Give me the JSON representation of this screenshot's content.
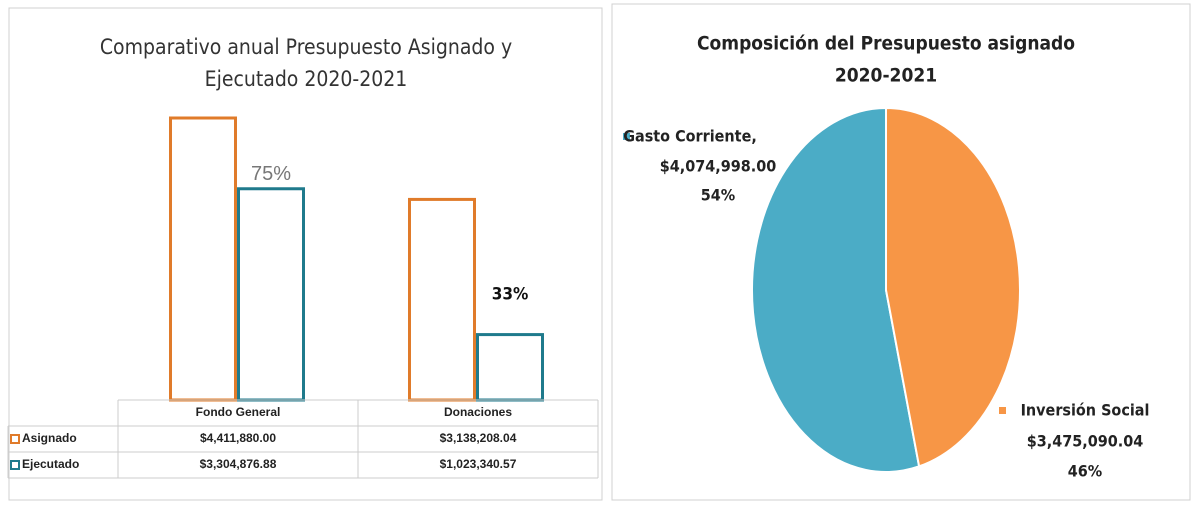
{
  "chart_data": [
    {
      "type": "bar",
      "title": "Comparativo anual Presupuesto Asignado y",
      "subtitle": "Ejecutado 2020-2021",
      "categories": [
        "Fondo General",
        "Donaciones"
      ],
      "series": [
        {
          "name": "Asignado",
          "color": "#e07b2a",
          "values": [
            4411880.0,
            3138208.04
          ],
          "value_labels": [
            "$4,411,880.00",
            "$3,138,208.04"
          ]
        },
        {
          "name": "Ejecutado",
          "color": "#1f7a8c",
          "values": [
            3304876.88,
            1023340.57
          ],
          "value_labels": [
            "$3,304,876.88",
            "$1,023,340.57"
          ]
        }
      ],
      "annotations": [
        "75%",
        "33%"
      ]
    },
    {
      "type": "pie",
      "title": "Composición del Presupuesto asignado",
      "subtitle": "2020-2021",
      "categories": [
        "Gasto Corriente,",
        "Inversión Social"
      ],
      "values": [
        4074998.0,
        3475090.04
      ],
      "value_labels": [
        "$4,074,998.00",
        "$3,475,090.04"
      ],
      "percent_labels": [
        "54%",
        "46%"
      ],
      "colors": [
        "#4bacc6",
        "#f79646"
      ]
    }
  ]
}
